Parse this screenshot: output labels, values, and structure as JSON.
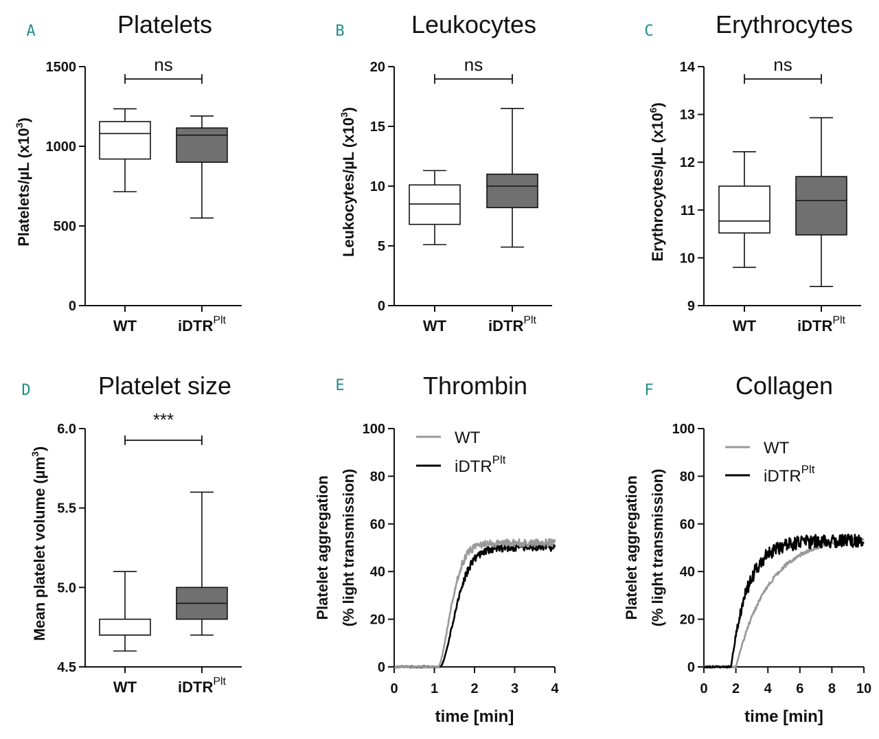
{
  "colors": {
    "wt_box": "#ffffff",
    "idtr_box": "#707070",
    "wt_line": "#999999",
    "idtr_line": "#000000",
    "accent": "#1f8b8b"
  },
  "chart_data": [
    {
      "panel": "A",
      "type": "box",
      "title": "Platelets",
      "ylabel": "Platelets/µL (x10",
      "ylabel_sup": "3",
      "ylabel_close": ")",
      "ylim": [
        0,
        1500
      ],
      "yticks": [
        0,
        500,
        1000,
        1500
      ],
      "categories": [
        {
          "label": "WT",
          "sup": ""
        },
        {
          "label": "iDTR",
          "sup": "Plt"
        }
      ],
      "boxes": [
        {
          "min": 715,
          "q1": 920,
          "median": 1080,
          "q3": 1155,
          "max": 1235
        },
        {
          "min": 550,
          "q1": 900,
          "median": 1070,
          "q3": 1115,
          "max": 1190
        }
      ],
      "significance": "ns"
    },
    {
      "panel": "B",
      "type": "box",
      "title": "Leukocytes",
      "ylabel": "Leukocytes/µL (x10",
      "ylabel_sup": "3",
      "ylabel_close": ")",
      "ylim": [
        0,
        20
      ],
      "yticks": [
        0,
        5,
        10,
        15,
        20
      ],
      "categories": [
        {
          "label": "WT",
          "sup": ""
        },
        {
          "label": "iDTR",
          "sup": "Plt"
        }
      ],
      "boxes": [
        {
          "min": 5.1,
          "q1": 6.8,
          "median": 8.5,
          "q3": 10.1,
          "max": 11.3
        },
        {
          "min": 4.9,
          "q1": 8.2,
          "median": 10.0,
          "q3": 11.0,
          "max": 16.5
        }
      ],
      "significance": "ns"
    },
    {
      "panel": "C",
      "type": "box",
      "title": "Erythrocytes",
      "ylabel": "Erythrocytes/µL (x10",
      "ylabel_sup": "6",
      "ylabel_close": ")",
      "ylim": [
        9,
        14
      ],
      "yticks": [
        9,
        10,
        11,
        12,
        13,
        14
      ],
      "categories": [
        {
          "label": "WT",
          "sup": ""
        },
        {
          "label": "iDTR",
          "sup": "Plt"
        }
      ],
      "boxes": [
        {
          "min": 9.8,
          "q1": 10.52,
          "median": 10.77,
          "q3": 11.5,
          "max": 12.22
        },
        {
          "min": 9.4,
          "q1": 10.48,
          "median": 11.2,
          "q3": 11.7,
          "max": 12.93
        }
      ],
      "significance": "ns"
    },
    {
      "panel": "D",
      "type": "box",
      "title": "Platelet size",
      "ylabel": "Mean platelet volume (µm",
      "ylabel_sup": "3",
      "ylabel_close": ")",
      "ylim": [
        4.5,
        6.0
      ],
      "yticks": [
        "4.5",
        "5.0",
        "5.5",
        "6.0"
      ],
      "categories": [
        {
          "label": "WT",
          "sup": ""
        },
        {
          "label": "iDTR",
          "sup": "Plt"
        }
      ],
      "boxes": [
        {
          "min": 4.6,
          "q1": 4.7,
          "median": 4.7,
          "q3": 4.8,
          "max": 5.1
        },
        {
          "min": 4.7,
          "q1": 4.8,
          "median": 4.9,
          "q3": 5.0,
          "max": 5.6
        }
      ],
      "significance": "***"
    },
    {
      "panel": "E",
      "type": "line",
      "title": "Thrombin",
      "ylabel_line1": "Platelet aggregation",
      "ylabel_line2": "(% light transmission)",
      "xlabel": "time [min]",
      "xlim": [
        0,
        4
      ],
      "xticks": [
        0,
        1,
        2,
        3,
        4
      ],
      "ylim": [
        0,
        100
      ],
      "yticks": [
        0,
        20,
        40,
        60,
        80,
        100
      ],
      "series": [
        {
          "name": "WT",
          "sup": "",
          "color": "#999999",
          "onset": 1.1,
          "plateau": 52,
          "rate": 2.4,
          "noise": 1.6
        },
        {
          "name": "iDTR",
          "sup": "Plt",
          "color": "#000000",
          "onset": 1.15,
          "plateau": 50,
          "rate": 2.0,
          "noise": 1.6
        }
      ]
    },
    {
      "panel": "F",
      "type": "line",
      "title": "Collagen",
      "ylabel_line1": "Platelet aggregation",
      "ylabel_line2": "(% light transmission)",
      "xlabel": "time [min]",
      "xlim": [
        0,
        10
      ],
      "xticks": [
        0,
        2,
        4,
        6,
        8,
        10
      ],
      "ylim": [
        0,
        100
      ],
      "yticks": [
        0,
        20,
        40,
        60,
        80,
        100
      ],
      "series": [
        {
          "name": "WT",
          "sup": "",
          "color": "#999999",
          "onset": 2.0,
          "plateau": 55,
          "rate": 0.48,
          "noise": 0.8
        },
        {
          "name": "iDTR",
          "sup": "Plt",
          "color": "#000000",
          "onset": 1.7,
          "plateau": 53,
          "rate": 0.95,
          "noise": 2.8
        }
      ]
    }
  ]
}
